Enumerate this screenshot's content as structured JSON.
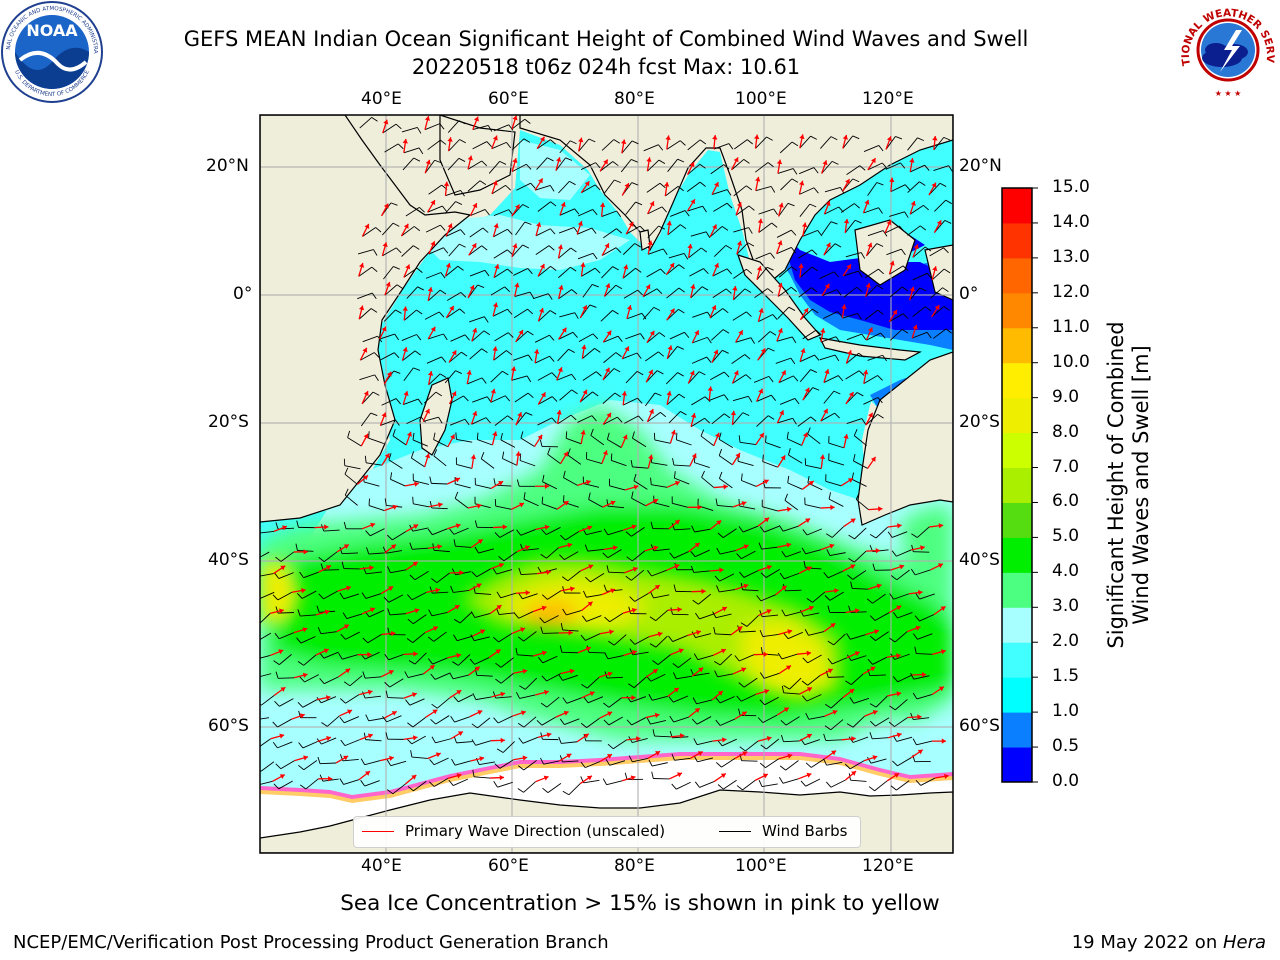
{
  "header": {
    "title_line1": "GEFS MEAN Indian Ocean Significant Height of Combined Wind Waves and Swell",
    "title_line2": "20220518 t06z 024h fcst   Max: 10.61"
  },
  "logos": {
    "noaa_text": "NOAA",
    "noaa_ring_top": "NATIONAL OCEANIC AND ATMOSPHERIC ADMINISTRATION",
    "noaa_ring_bottom": "U.S. DEPARTMENT OF COMMERCE",
    "nws_ring": "NATIONAL WEATHER SERVICE"
  },
  "map": {
    "lon_labels": [
      "40°E",
      "60°E",
      "80°E",
      "100°E",
      "120°E"
    ],
    "lat_labels_left": [
      "20°N",
      "0°",
      "20°S",
      "40°S",
      "60°S"
    ],
    "lat_labels_right": [
      "20°N",
      "0°",
      "20°S",
      "40°S",
      "60°S"
    ],
    "legend": {
      "wave_label": "Primary Wave Direction (unscaled)",
      "wind_label": "Wind Barbs",
      "wave_color": "#ff0000",
      "wind_color": "#000000"
    }
  },
  "colorbar": {
    "label_line1": "Significant Height of Combined",
    "label_line2": "Wind Waves and Swell [m]",
    "ticks": [
      "0.0",
      "0.5",
      "1.0",
      "1.5",
      "2.0",
      "3.0",
      "4.0",
      "5.0",
      "6.0",
      "7.0",
      "8.0",
      "9.0",
      "10.0",
      "11.0",
      "12.0",
      "13.0",
      "14.0",
      "15.0"
    ],
    "colors": [
      "#0000ff",
      "#0a7fff",
      "#00ffff",
      "#42ffff",
      "#a8ffff",
      "#4dff80",
      "#00ee00",
      "#55dd11",
      "#aaee00",
      "#ccff00",
      "#eeee00",
      "#ffee00",
      "#ffbb00",
      "#ff8800",
      "#ff6600",
      "#ff3300",
      "#ff0000"
    ]
  },
  "caption": "Sea Ice Concentration > 15% is shown in pink to yellow",
  "footer": {
    "left": "NCEP/EMC/Verification Post Processing Product Generation Branch",
    "right_date": "19 May 2022 on ",
    "right_host": "Hera"
  }
}
